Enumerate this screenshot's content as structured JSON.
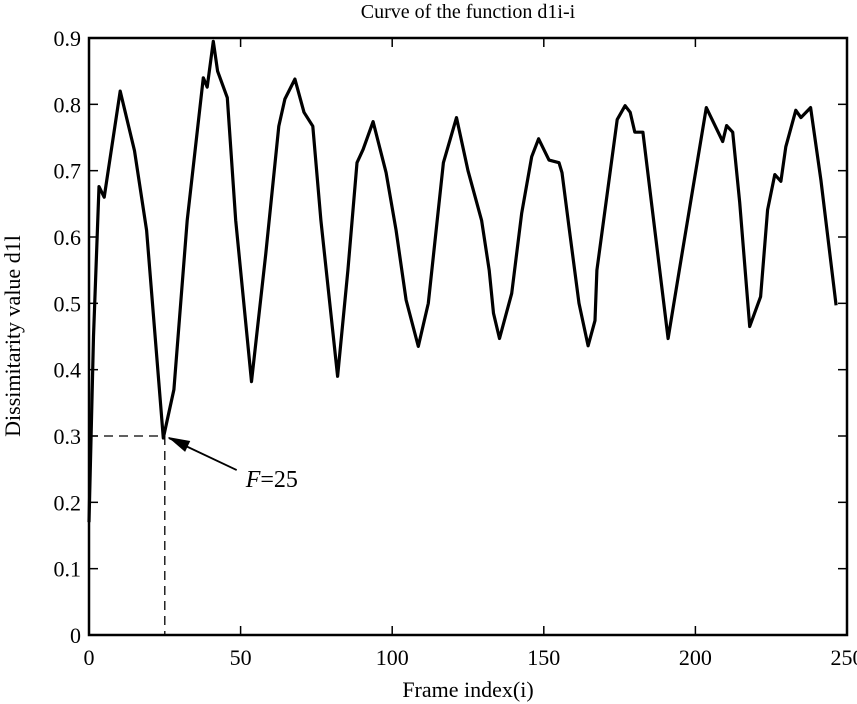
{
  "chart_data": {
    "type": "line",
    "title": "Curve of the function d1i-i",
    "xlabel": "Frame index(i)",
    "ylabel": "Dissimitarity value d1l",
    "xlim": [
      0,
      250
    ],
    "ylim": [
      0,
      0.9
    ],
    "grid": false,
    "xticks": [
      0,
      50,
      100,
      150,
      200,
      250
    ],
    "yticks": [
      0,
      0.1,
      0.2,
      0.3,
      0.4,
      0.5,
      0.6,
      0.7,
      0.8,
      0.9
    ],
    "series": [
      {
        "name": "d1i",
        "color": "#000000",
        "x": [
          0,
          1.5,
          3.3,
          5,
          10.3,
          15,
          19,
          24.5,
          28,
          32.4,
          37.7,
          39,
          41,
          42.4,
          45.6,
          48.4,
          53.6,
          58.3,
          62.6,
          64.6,
          67.9,
          70.9,
          73.8,
          76.5,
          82,
          85.4,
          88.4,
          90.4,
          93.7,
          98,
          101.3,
          104.6,
          108.6,
          111.9,
          116.9,
          121.2,
          125,
          129.5,
          132,
          133.4,
          135.4,
          139.4,
          142.7,
          146,
          148.3,
          151.7,
          155,
          156,
          158.3,
          161.6,
          164.6,
          166.9,
          167.5,
          174.2,
          176.8,
          178.5,
          180,
          182.7,
          185.7,
          191,
          194.7,
          203.6,
          209,
          210.3,
          212.3,
          214.6,
          217.9,
          221.5,
          223.8,
          226.2,
          228.2,
          229.8,
          233.1,
          234.8,
          238,
          241.4,
          246.4
        ],
        "y": [
          0.17,
          0.45,
          0.676,
          0.66,
          0.82,
          0.73,
          0.61,
          0.297,
          0.37,
          0.625,
          0.84,
          0.826,
          0.895,
          0.85,
          0.81,
          0.625,
          0.382,
          0.575,
          0.767,
          0.808,
          0.838,
          0.788,
          0.767,
          0.625,
          0.39,
          0.55,
          0.712,
          0.732,
          0.774,
          0.697,
          0.61,
          0.505,
          0.435,
          0.5,
          0.712,
          0.78,
          0.7,
          0.625,
          0.55,
          0.485,
          0.447,
          0.515,
          0.636,
          0.721,
          0.748,
          0.716,
          0.712,
          0.697,
          0.615,
          0.5,
          0.436,
          0.474,
          0.55,
          0.777,
          0.798,
          0.788,
          0.758,
          0.758,
          0.645,
          0.447,
          0.55,
          0.795,
          0.744,
          0.768,
          0.758,
          0.652,
          0.465,
          0.51,
          0.641,
          0.694,
          0.684,
          0.736,
          0.791,
          0.78,
          0.795,
          0.686,
          0.497
        ]
      }
    ],
    "annotations": [
      {
        "text_italic": "F",
        "text_rest": "=25",
        "point": [
          25,
          0.3
        ],
        "text_at": [
          53,
          0.235
        ],
        "guide_lines": "dashed"
      }
    ]
  }
}
